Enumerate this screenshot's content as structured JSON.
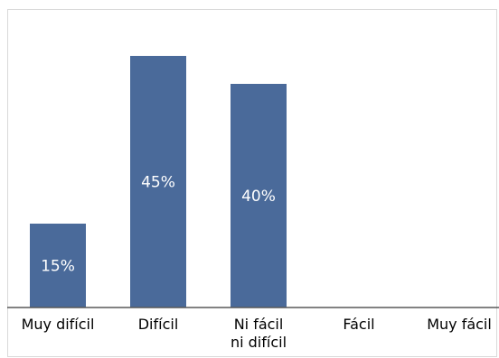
{
  "chart_data": {
    "type": "bar",
    "categories": [
      [
        "Muy difícil"
      ],
      [
        "Difícil"
      ],
      [
        "Ni fácil",
        "ni difícil"
      ],
      [
        "Fácil"
      ],
      [
        "Muy fácil"
      ]
    ],
    "values": [
      15,
      45,
      40,
      null,
      null
    ],
    "data_labels": [
      "15%",
      "45%",
      "40%",
      "",
      ""
    ],
    "title": "",
    "xlabel": "",
    "ylabel": "",
    "ylim": [
      0,
      50
    ],
    "grid": false,
    "legend": "none",
    "bar_color": "#4a6a9a"
  }
}
